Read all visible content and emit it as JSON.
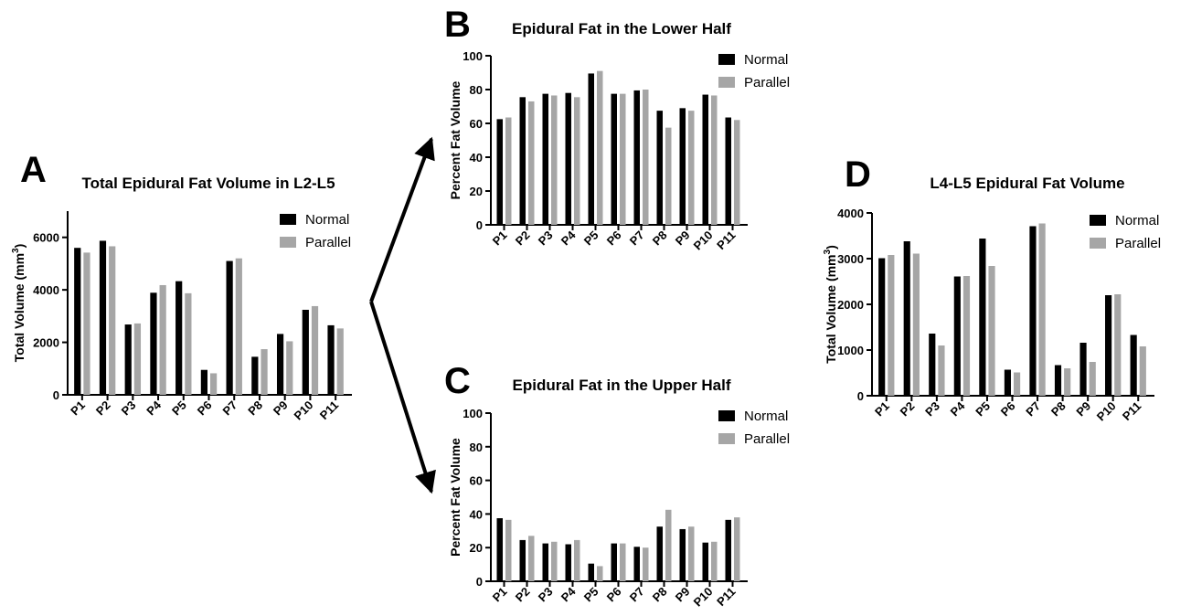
{
  "colors": {
    "normal": "#000000",
    "parallel": "#a6a6a6"
  },
  "chart_data": [
    {
      "panel": "A",
      "type": "bar",
      "title": "Total Epidural Fat Volume in L2-L5",
      "ylabel": "Total Volume (mm",
      "ylabel_sup": "3",
      "ylabel_end": ")",
      "ylim": [
        0,
        7000
      ],
      "yticks": [
        0,
        2000,
        4000,
        6000
      ],
      "legend_position": "top-right",
      "categories": [
        "P1",
        "P2",
        "P3",
        "P4",
        "P5",
        "P6",
        "P7",
        "P8",
        "P9",
        "P10",
        "P11"
      ],
      "series": [
        {
          "name": "Normal",
          "values": [
            5600,
            5870,
            2680,
            3890,
            4330,
            950,
            5100,
            1450,
            2320,
            3240,
            2650
          ]
        },
        {
          "name": "Parallel",
          "values": [
            5420,
            5660,
            2720,
            4180,
            3870,
            820,
            5200,
            1740,
            2040,
            3380,
            2530
          ]
        }
      ]
    },
    {
      "panel": "B",
      "type": "bar",
      "title": "Epidural Fat in the Lower Half",
      "ylabel": "Percent Fat Volume",
      "ylim": [
        0,
        100
      ],
      "yticks": [
        0,
        20,
        40,
        60,
        80,
        100
      ],
      "legend_position": "top-right",
      "categories": [
        "P1",
        "P2",
        "P3",
        "P4",
        "P5",
        "P6",
        "P7",
        "P8",
        "P9",
        "P10",
        "P11"
      ],
      "series": [
        {
          "name": "Normal",
          "values": [
            62.5,
            75.5,
            77.5,
            78,
            89.5,
            77.5,
            79.5,
            67.5,
            69,
            77,
            63.5
          ]
        },
        {
          "name": "Parallel",
          "values": [
            63.5,
            73,
            76.5,
            75.5,
            91,
            77.5,
            80,
            57.5,
            67.5,
            76.5,
            62
          ]
        }
      ]
    },
    {
      "panel": "C",
      "type": "bar",
      "title": "Epidural Fat in the Upper Half",
      "ylabel": "Percent Fat Volume",
      "ylim": [
        0,
        100
      ],
      "yticks": [
        0,
        20,
        40,
        60,
        80,
        100
      ],
      "legend_position": "top-right",
      "categories": [
        "P1",
        "P2",
        "P3",
        "P4",
        "P5",
        "P6",
        "P7",
        "P8",
        "P9",
        "P10",
        "P11"
      ],
      "series": [
        {
          "name": "Normal",
          "values": [
            37.5,
            24.5,
            22.5,
            22,
            10.5,
            22.5,
            20.5,
            32.5,
            31,
            23,
            36.5
          ]
        },
        {
          "name": "Parallel",
          "values": [
            36.5,
            27,
            23.5,
            24.5,
            9,
            22.5,
            20,
            42.5,
            32.5,
            23.5,
            38
          ]
        }
      ]
    },
    {
      "panel": "D",
      "type": "bar",
      "title": "L4-L5 Epidural Fat Volume",
      "ylabel": "Total Volume (mm",
      "ylabel_sup": "3",
      "ylabel_end": ")",
      "ylim": [
        0,
        4000
      ],
      "yticks": [
        0,
        1000,
        2000,
        3000,
        4000
      ],
      "legend_position": "top-right",
      "categories": [
        "P1",
        "P2",
        "P3",
        "P4",
        "P5",
        "P6",
        "P7",
        "P8",
        "P9",
        "P10",
        "P11"
      ],
      "series": [
        {
          "name": "Normal",
          "values": [
            3010,
            3380,
            1360,
            2610,
            3440,
            570,
            3710,
            670,
            1160,
            2200,
            1330
          ]
        },
        {
          "name": "Parallel",
          "values": [
            3080,
            3110,
            1100,
            2620,
            2840,
            510,
            3770,
            600,
            740,
            2220,
            1080
          ]
        }
      ]
    }
  ]
}
